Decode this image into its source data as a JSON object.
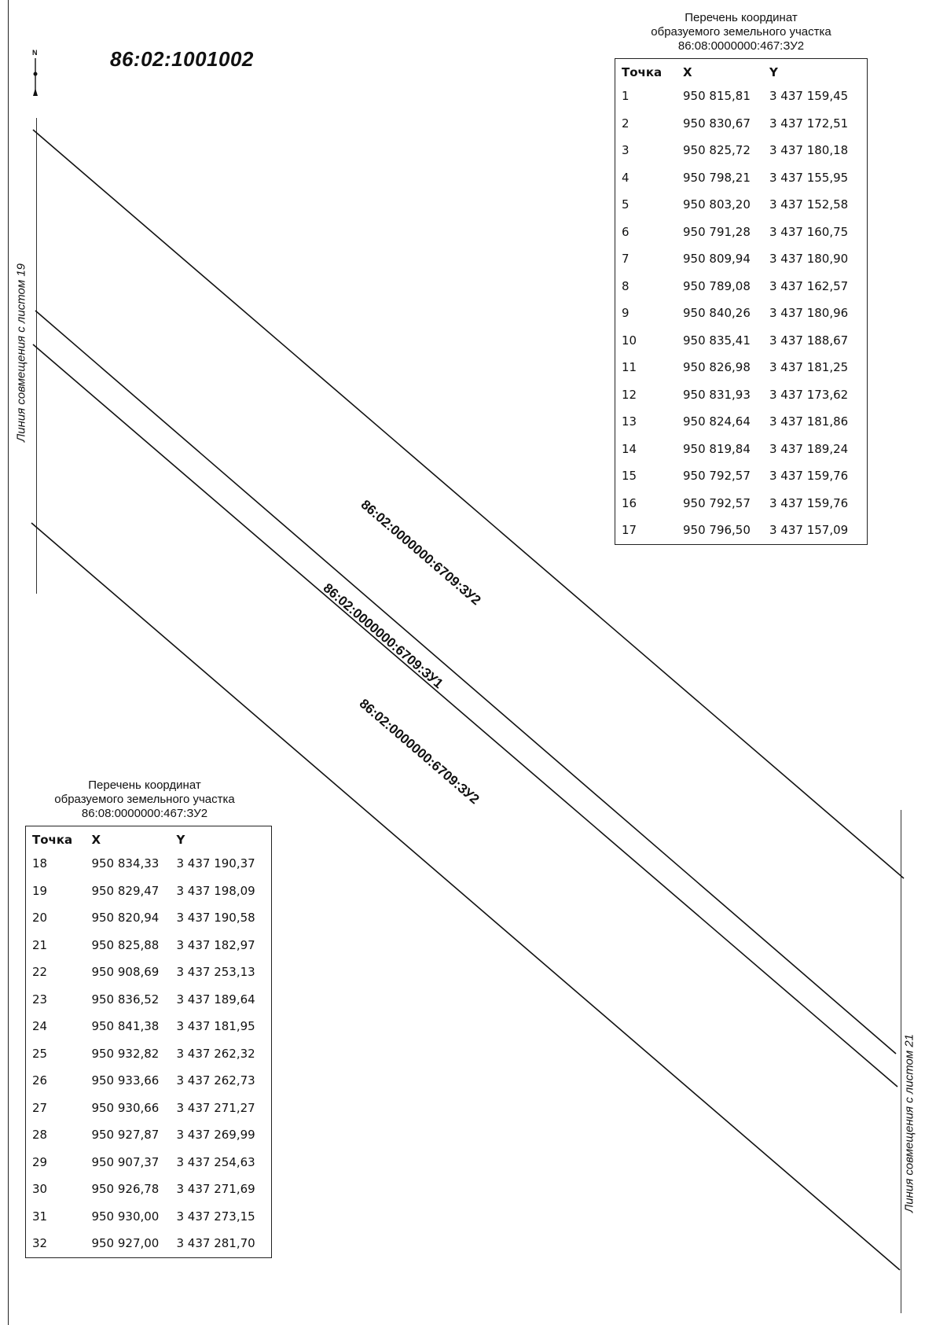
{
  "block_number": "86:02:1001002",
  "north_arrow": {
    "letter": "N",
    "icon": "north-arrow-icon"
  },
  "match_lines": {
    "left": "Линия совмещения с листом 19",
    "right": "Линия совмещения с листом 21"
  },
  "parcel_labels": {
    "upper": "86:02:0000000:6709:ЗУ2",
    "middle": "86:02:0000000:6709:ЗУ1",
    "lower": "86:02:0000000:6709:ЗУ2"
  },
  "table_top": {
    "title_line1": "Перечень координат",
    "title_line2": "образуемого земельного участка",
    "title_line3": "86:08:0000000:467:ЗУ2",
    "headers": {
      "point": "Точка",
      "x": "X",
      "y": "Y"
    },
    "rows": [
      [
        "1",
        "950 815,81",
        "3 437 159,45"
      ],
      [
        "2",
        "950 830,67",
        "3 437 172,51"
      ],
      [
        "3",
        "950 825,72",
        "3 437 180,18"
      ],
      [
        "4",
        "950 798,21",
        "3 437 155,95"
      ],
      [
        "5",
        "950 803,20",
        "3 437 152,58"
      ],
      [
        "6",
        "950 791,28",
        "3 437 160,75"
      ],
      [
        "7",
        "950 809,94",
        "3 437 180,90"
      ],
      [
        "8",
        "950 789,08",
        "3 437 162,57"
      ],
      [
        "9",
        "950 840,26",
        "3 437 180,96"
      ],
      [
        "10",
        "950 835,41",
        "3 437 188,67"
      ],
      [
        "11",
        "950 826,98",
        "3 437 181,25"
      ],
      [
        "12",
        "950 831,93",
        "3 437 173,62"
      ],
      [
        "13",
        "950 824,64",
        "3 437 181,86"
      ],
      [
        "14",
        "950 819,84",
        "3 437 189,24"
      ],
      [
        "15",
        "950 792,57",
        "3 437 159,76"
      ],
      [
        "16",
        "950 792,57",
        "3 437 159,76"
      ],
      [
        "17",
        "950 796,50",
        "3 437 157,09"
      ]
    ]
  },
  "table_bottom": {
    "title_line1": "Перечень координат",
    "title_line2": "образуемого земельного участка",
    "title_line3": "86:08:0000000:467:ЗУ2",
    "headers": {
      "point": "Точка",
      "x": "X",
      "y": "Y"
    },
    "rows": [
      [
        "18",
        "950 834,33",
        "3 437 190,37"
      ],
      [
        "19",
        "950 829,47",
        "3 437 198,09"
      ],
      [
        "20",
        "950 820,94",
        "3 437 190,58"
      ],
      [
        "21",
        "950 825,88",
        "3 437 182,97"
      ],
      [
        "22",
        "950 908,69",
        "3 437 253,13"
      ],
      [
        "23",
        "950 836,52",
        "3 437 189,64"
      ],
      [
        "24",
        "950 841,38",
        "3 437 181,95"
      ],
      [
        "25",
        "950 932,82",
        "3 437 262,32"
      ],
      [
        "26",
        "950 933,66",
        "3 437 262,73"
      ],
      [
        "27",
        "950 930,66",
        "3 437 271,27"
      ],
      [
        "28",
        "950 927,87",
        "3 437 269,99"
      ],
      [
        "29",
        "950 907,37",
        "3 437 254,63"
      ],
      [
        "30",
        "950 926,78",
        "3 437 271,69"
      ],
      [
        "31",
        "950 930,00",
        "3 437 273,15"
      ],
      [
        "32",
        "950 927,00",
        "3 437 281,70"
      ]
    ]
  }
}
